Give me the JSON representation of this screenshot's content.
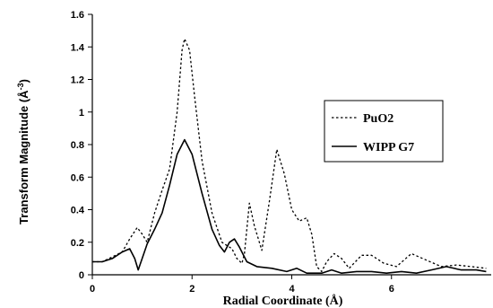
{
  "chart_data": {
    "type": "line",
    "title": "",
    "xlabel": "Radial Coordinate (Å)",
    "ylabel_main": "Transform Magnitude (Å",
    "ylabel_sup": "-3",
    "ylabel_close": ")",
    "xlim": [
      0,
      8
    ],
    "ylim": [
      0,
      1.6
    ],
    "x_ticks": [
      0,
      2,
      4,
      6
    ],
    "x_tick_labels": [
      "0",
      "2",
      "4",
      "6"
    ],
    "y_ticks": [
      0,
      0.2,
      0.4,
      0.6,
      0.8,
      1,
      1.2,
      1.4,
      1.6
    ],
    "y_tick_labels": [
      "0",
      "0.2",
      "0.4",
      "0.6",
      "0.8",
      "1",
      "1.2",
      "1.4",
      "1.6"
    ],
    "grid": false,
    "legend_position": "right",
    "series": [
      {
        "name": "PuO2",
        "style": "dotted",
        "color": "#000000",
        "points": [
          [
            0.0,
            0.08
          ],
          [
            0.2,
            0.08
          ],
          [
            0.4,
            0.11
          ],
          [
            0.6,
            0.14
          ],
          [
            0.75,
            0.22
          ],
          [
            0.9,
            0.29
          ],
          [
            1.0,
            0.25
          ],
          [
            1.1,
            0.2
          ],
          [
            1.25,
            0.38
          ],
          [
            1.4,
            0.52
          ],
          [
            1.55,
            0.65
          ],
          [
            1.7,
            1.0
          ],
          [
            1.8,
            1.38
          ],
          [
            1.85,
            1.45
          ],
          [
            1.95,
            1.38
          ],
          [
            2.05,
            1.1
          ],
          [
            2.2,
            0.7
          ],
          [
            2.4,
            0.38
          ],
          [
            2.6,
            0.2
          ],
          [
            2.8,
            0.16
          ],
          [
            2.9,
            0.1
          ],
          [
            3.0,
            0.07
          ],
          [
            3.05,
            0.13
          ],
          [
            3.15,
            0.44
          ],
          [
            3.25,
            0.3
          ],
          [
            3.4,
            0.15
          ],
          [
            3.55,
            0.45
          ],
          [
            3.7,
            0.77
          ],
          [
            3.85,
            0.62
          ],
          [
            4.0,
            0.4
          ],
          [
            4.15,
            0.33
          ],
          [
            4.3,
            0.35
          ],
          [
            4.4,
            0.25
          ],
          [
            4.5,
            0.05
          ],
          [
            4.6,
            0.02
          ],
          [
            4.7,
            0.08
          ],
          [
            4.85,
            0.13
          ],
          [
            5.0,
            0.1
          ],
          [
            5.15,
            0.04
          ],
          [
            5.4,
            0.12
          ],
          [
            5.6,
            0.12
          ],
          [
            5.85,
            0.07
          ],
          [
            6.1,
            0.05
          ],
          [
            6.4,
            0.13
          ],
          [
            6.7,
            0.09
          ],
          [
            7.0,
            0.05
          ],
          [
            7.3,
            0.06
          ],
          [
            7.6,
            0.05
          ],
          [
            7.9,
            0.04
          ]
        ]
      },
      {
        "name": "WIPP G7",
        "style": "solid",
        "color": "#000000",
        "points": [
          [
            0.0,
            0.08
          ],
          [
            0.2,
            0.08
          ],
          [
            0.4,
            0.1
          ],
          [
            0.6,
            0.14
          ],
          [
            0.75,
            0.16
          ],
          [
            0.85,
            0.1
          ],
          [
            0.92,
            0.03
          ],
          [
            1.0,
            0.1
          ],
          [
            1.1,
            0.19
          ],
          [
            1.25,
            0.28
          ],
          [
            1.4,
            0.38
          ],
          [
            1.55,
            0.55
          ],
          [
            1.7,
            0.74
          ],
          [
            1.85,
            0.83
          ],
          [
            2.0,
            0.74
          ],
          [
            2.2,
            0.5
          ],
          [
            2.4,
            0.28
          ],
          [
            2.55,
            0.18
          ],
          [
            2.65,
            0.14
          ],
          [
            2.75,
            0.2
          ],
          [
            2.85,
            0.22
          ],
          [
            2.95,
            0.17
          ],
          [
            3.1,
            0.08
          ],
          [
            3.3,
            0.05
          ],
          [
            3.6,
            0.04
          ],
          [
            3.9,
            0.02
          ],
          [
            4.1,
            0.04
          ],
          [
            4.3,
            0.01
          ],
          [
            4.6,
            0.01
          ],
          [
            4.8,
            0.03
          ],
          [
            5.0,
            0.01
          ],
          [
            5.3,
            0.02
          ],
          [
            5.6,
            0.02
          ],
          [
            5.9,
            0.01
          ],
          [
            6.2,
            0.02
          ],
          [
            6.5,
            0.01
          ],
          [
            6.8,
            0.03
          ],
          [
            7.1,
            0.05
          ],
          [
            7.4,
            0.03
          ],
          [
            7.7,
            0.03
          ],
          [
            7.9,
            0.02
          ]
        ]
      }
    ]
  }
}
